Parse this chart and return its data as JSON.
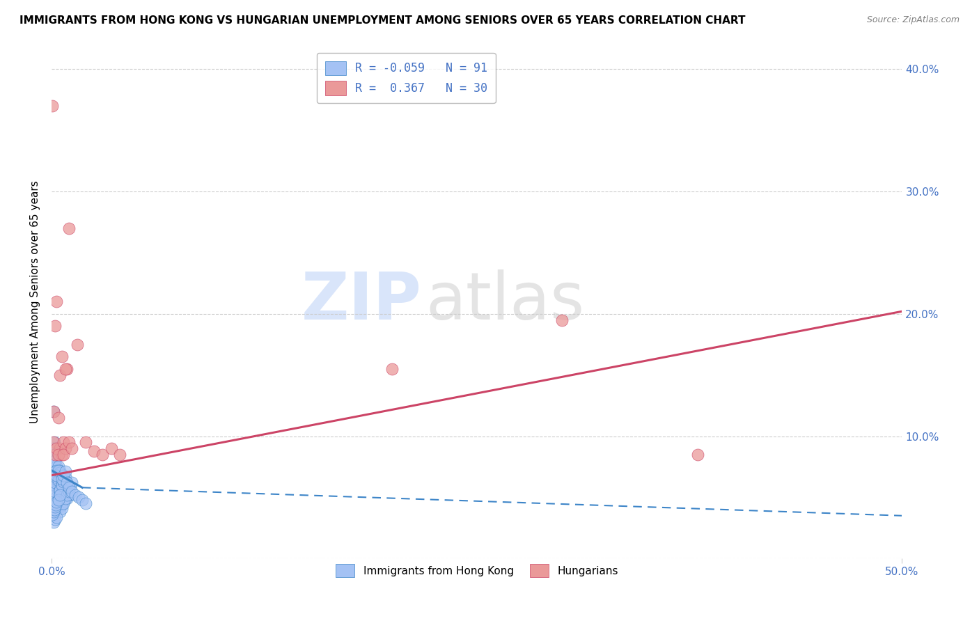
{
  "title": "IMMIGRANTS FROM HONG KONG VS HUNGARIAN UNEMPLOYMENT AMONG SENIORS OVER 65 YEARS CORRELATION CHART",
  "source": "Source: ZipAtlas.com",
  "ylabel": "Unemployment Among Seniors over 65 years",
  "xlim": [
    0.0,
    0.5
  ],
  "ylim": [
    0.0,
    0.42
  ],
  "blue_R": -0.059,
  "blue_N": 91,
  "pink_R": 0.367,
  "pink_N": 30,
  "blue_color": "#a4c2f4",
  "pink_color": "#ea9999",
  "blue_line_color": "#3d85c8",
  "pink_line_color": "#cc4466",
  "watermark_zip": "ZIP",
  "watermark_atlas": "atlas",
  "tick_color": "#4472c4",
  "grid_color": "#cccccc",
  "blue_scatter_x": [
    0.0005,
    0.001,
    0.0015,
    0.0005,
    0.001,
    0.0015,
    0.002,
    0.001,
    0.002,
    0.0005,
    0.001,
    0.0015,
    0.002,
    0.0025,
    0.001,
    0.002,
    0.003,
    0.0005,
    0.001,
    0.002,
    0.003,
    0.004,
    0.001,
    0.002,
    0.003,
    0.004,
    0.005,
    0.001,
    0.002,
    0.003,
    0.004,
    0.005,
    0.006,
    0.002,
    0.003,
    0.004,
    0.005,
    0.006,
    0.007,
    0.003,
    0.004,
    0.005,
    0.006,
    0.007,
    0.008,
    0.003,
    0.004,
    0.005,
    0.006,
    0.007,
    0.004,
    0.005,
    0.006,
    0.007,
    0.008,
    0.009,
    0.005,
    0.006,
    0.007,
    0.008,
    0.009,
    0.01,
    0.005,
    0.006,
    0.007,
    0.008,
    0.009,
    0.01,
    0.011,
    0.012,
    0.006,
    0.007,
    0.008,
    0.009,
    0.01,
    0.012,
    0.014,
    0.016,
    0.018,
    0.02,
    0.001,
    0.002,
    0.003,
    0.0005,
    0.001,
    0.0015,
    0.002,
    0.0025,
    0.003,
    0.004,
    0.005
  ],
  "blue_scatter_y": [
    0.085,
    0.12,
    0.095,
    0.06,
    0.075,
    0.07,
    0.045,
    0.08,
    0.065,
    0.055,
    0.09,
    0.085,
    0.07,
    0.06,
    0.075,
    0.08,
    0.065,
    0.04,
    0.07,
    0.06,
    0.075,
    0.055,
    0.065,
    0.08,
    0.05,
    0.075,
    0.06,
    0.07,
    0.055,
    0.065,
    0.068,
    0.072,
    0.058,
    0.062,
    0.066,
    0.07,
    0.052,
    0.056,
    0.068,
    0.072,
    0.064,
    0.07,
    0.054,
    0.06,
    0.063,
    0.068,
    0.072,
    0.056,
    0.061,
    0.064,
    0.048,
    0.042,
    0.044,
    0.046,
    0.05,
    0.053,
    0.056,
    0.06,
    0.063,
    0.067,
    0.049,
    0.052,
    0.038,
    0.041,
    0.045,
    0.049,
    0.052,
    0.055,
    0.059,
    0.062,
    0.065,
    0.068,
    0.071,
    0.062,
    0.058,
    0.055,
    0.052,
    0.05,
    0.048,
    0.045,
    0.03,
    0.032,
    0.034,
    0.036,
    0.038,
    0.04,
    0.042,
    0.044,
    0.046,
    0.048,
    0.052
  ],
  "pink_scatter_x": [
    0.0005,
    0.001,
    0.003,
    0.002,
    0.004,
    0.001,
    0.005,
    0.002,
    0.006,
    0.003,
    0.007,
    0.004,
    0.008,
    0.005,
    0.009,
    0.006,
    0.01,
    0.007,
    0.012,
    0.008,
    0.015,
    0.02,
    0.025,
    0.03,
    0.035,
    0.04,
    0.3,
    0.38,
    0.01,
    0.2
  ],
  "pink_scatter_y": [
    0.37,
    0.12,
    0.21,
    0.19,
    0.115,
    0.095,
    0.09,
    0.085,
    0.085,
    0.09,
    0.095,
    0.085,
    0.09,
    0.15,
    0.155,
    0.165,
    0.095,
    0.085,
    0.09,
    0.155,
    0.175,
    0.095,
    0.088,
    0.085,
    0.09,
    0.085,
    0.195,
    0.085,
    0.27,
    0.155
  ],
  "blue_trend_x0": 0.0,
  "blue_trend_x1": 0.018,
  "blue_trend_xd": 0.5,
  "blue_trend_y0": 0.072,
  "blue_trend_y1": 0.058,
  "blue_trend_yd": 0.035,
  "pink_trend_x0": 0.0,
  "pink_trend_x1": 0.5,
  "pink_trend_y0": 0.068,
  "pink_trend_y1": 0.202
}
